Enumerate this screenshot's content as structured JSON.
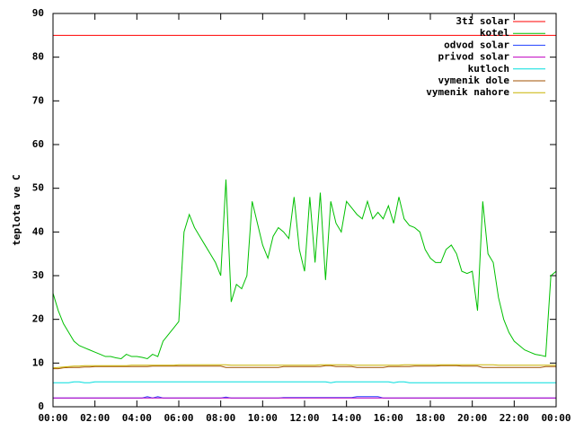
{
  "chart_data": {
    "type": "line",
    "ylabel": "teplota ve C",
    "x": [
      0,
      0.25,
      0.5,
      0.75,
      1,
      1.25,
      1.5,
      1.75,
      2,
      2.25,
      2.5,
      2.75,
      3,
      3.25,
      3.5,
      3.75,
      4,
      4.25,
      4.5,
      4.75,
      5,
      5.25,
      5.5,
      5.75,
      6,
      6.25,
      6.5,
      6.75,
      7,
      7.25,
      7.5,
      7.75,
      8,
      8.25,
      8.5,
      8.75,
      9,
      9.25,
      9.5,
      9.75,
      10,
      10.25,
      10.5,
      10.75,
      11,
      11.25,
      11.5,
      11.75,
      12,
      12.25,
      12.5,
      12.75,
      13,
      13.25,
      13.5,
      13.75,
      14,
      14.25,
      14.5,
      14.75,
      15,
      15.25,
      15.5,
      15.75,
      16,
      16.25,
      16.5,
      16.75,
      17,
      17.25,
      17.5,
      17.75,
      18,
      18.25,
      18.5,
      18.75,
      19,
      19.25,
      19.5,
      19.75,
      20,
      20.25,
      20.5,
      20.75,
      21,
      21.25,
      21.5,
      21.75,
      22,
      22.25,
      22.5,
      22.75,
      23,
      23.25,
      23.5,
      23.75,
      24
    ],
    "xlim": [
      0,
      24
    ],
    "xticks": [
      {
        "value": 0,
        "label": "00:00"
      },
      {
        "value": 2,
        "label": "02:00"
      },
      {
        "value": 4,
        "label": "04:00"
      },
      {
        "value": 6,
        "label": "06:00"
      },
      {
        "value": 8,
        "label": "08:00"
      },
      {
        "value": 10,
        "label": "10:00"
      },
      {
        "value": 12,
        "label": "12:00"
      },
      {
        "value": 14,
        "label": "14:00"
      },
      {
        "value": 16,
        "label": "16:00"
      },
      {
        "value": 18,
        "label": "18:00"
      },
      {
        "value": 20,
        "label": "20:00"
      },
      {
        "value": 22,
        "label": "22:00"
      },
      {
        "value": 24,
        "label": "00:00"
      }
    ],
    "ylim": [
      0,
      90
    ],
    "yticks": [
      0,
      10,
      20,
      30,
      40,
      50,
      60,
      70,
      80,
      90
    ],
    "grid": false,
    "legend": "top-right",
    "series": [
      {
        "name": "3ti solar",
        "color": "#ff0000",
        "values": [
          85,
          85,
          85,
          85,
          85,
          85,
          85,
          85,
          85,
          85,
          85,
          85,
          85,
          85,
          85,
          85,
          85,
          85,
          85,
          85,
          85,
          85,
          85,
          85,
          85,
          85,
          85,
          85,
          85,
          85,
          85,
          85,
          85,
          85,
          85,
          85,
          85,
          85,
          85,
          85,
          85,
          85,
          85,
          85,
          85,
          85,
          85,
          85,
          85,
          85,
          85,
          85,
          85,
          85,
          85,
          85,
          85,
          85,
          85,
          85,
          85,
          85,
          85,
          85,
          85,
          85,
          85,
          85,
          85,
          85,
          85,
          85,
          85,
          85,
          85,
          85,
          85,
          85,
          85,
          85,
          85,
          85,
          85,
          85,
          85,
          85,
          85,
          85,
          85,
          85,
          85,
          85,
          85,
          85,
          85,
          85,
          85
        ]
      },
      {
        "name": "kotel",
        "color": "#00c000",
        "values": [
          26,
          22,
          19,
          17,
          15,
          14,
          13.5,
          13,
          12.5,
          12,
          11.5,
          11.5,
          11.2,
          11,
          12,
          11.5,
          11.5,
          11.3,
          11,
          12,
          11.5,
          15,
          16.5,
          18,
          19.5,
          40,
          44,
          41,
          39,
          37,
          35,
          33,
          30,
          52,
          24,
          28,
          27,
          30,
          47,
          42,
          37,
          34,
          39,
          41,
          40,
          38.5,
          48,
          36,
          31,
          48,
          33,
          49,
          29,
          47,
          42,
          40,
          47,
          45.5,
          44,
          43,
          47,
          43,
          44.5,
          43,
          46,
          42,
          48,
          43,
          41.5,
          41,
          40,
          36,
          34,
          33,
          33,
          36,
          37,
          35,
          31,
          30.5,
          31,
          22,
          47,
          35,
          33,
          25,
          20,
          17,
          15,
          14,
          13,
          12.5,
          12,
          11.8,
          11.5,
          30,
          31
        ]
      },
      {
        "name": "odvod solar",
        "color": "#2040ff",
        "values": [
          2,
          2,
          2,
          2,
          2,
          2,
          2,
          2,
          2,
          2,
          2,
          2,
          2,
          2,
          2,
          2,
          2,
          2,
          2.3,
          2,
          2.3,
          2,
          2,
          2,
          2,
          2,
          2,
          2,
          2,
          2,
          2,
          2,
          2,
          2.2,
          2,
          2,
          2,
          2,
          2,
          2,
          2,
          2,
          2,
          2,
          2.1,
          2.1,
          2.1,
          2.1,
          2.1,
          2.1,
          2.1,
          2.1,
          2.1,
          2.1,
          2.1,
          2.1,
          2.1,
          2.1,
          2.3,
          2.3,
          2.3,
          2.3,
          2.3,
          2,
          2,
          2,
          2,
          2,
          2,
          2,
          2,
          2,
          2,
          2,
          2,
          2,
          2,
          2,
          2,
          2,
          2,
          2,
          2,
          2,
          2,
          2,
          2,
          2,
          2,
          2,
          2,
          2,
          2,
          2,
          2,
          2,
          2
        ]
      },
      {
        "name": "privod solar",
        "color": "#c000c0",
        "values": [
          2,
          2,
          2,
          2,
          2,
          2,
          2,
          2,
          2,
          2,
          2,
          2,
          2,
          2,
          2,
          2,
          2,
          2,
          2,
          2,
          2,
          2,
          2,
          2,
          2,
          2,
          2,
          2,
          2,
          2,
          2,
          2,
          2,
          2,
          2,
          2,
          2,
          2,
          2,
          2,
          2,
          2,
          2,
          2,
          2,
          2,
          2,
          2,
          2,
          2,
          2,
          2,
          2,
          2,
          2,
          2,
          2,
          2,
          2,
          2,
          2,
          2,
          2,
          2,
          2,
          2,
          2,
          2,
          2,
          2,
          2,
          2,
          2,
          2,
          2,
          2,
          2,
          2,
          2,
          2,
          2,
          2,
          2,
          2,
          2,
          2,
          2,
          2,
          2,
          2,
          2,
          2,
          2,
          2,
          2,
          2,
          2
        ]
      },
      {
        "name": "kutloch",
        "color": "#00dddd",
        "values": [
          5.5,
          5.5,
          5.5,
          5.5,
          5.7,
          5.7,
          5.5,
          5.5,
          5.7,
          5.7,
          5.7,
          5.7,
          5.7,
          5.7,
          5.7,
          5.7,
          5.7,
          5.7,
          5.7,
          5.7,
          5.7,
          5.7,
          5.7,
          5.7,
          5.7,
          5.7,
          5.7,
          5.7,
          5.7,
          5.7,
          5.7,
          5.7,
          5.7,
          5.7,
          5.7,
          5.7,
          5.7,
          5.7,
          5.7,
          5.7,
          5.7,
          5.7,
          5.7,
          5.7,
          5.7,
          5.7,
          5.7,
          5.7,
          5.7,
          5.7,
          5.7,
          5.7,
          5.7,
          5.5,
          5.7,
          5.7,
          5.7,
          5.7,
          5.7,
          5.7,
          5.7,
          5.7,
          5.7,
          5.7,
          5.7,
          5.5,
          5.7,
          5.7,
          5.5,
          5.5,
          5.5,
          5.5,
          5.5,
          5.5,
          5.5,
          5.5,
          5.5,
          5.5,
          5.5,
          5.5,
          5.5,
          5.5,
          5.5,
          5.5,
          5.5,
          5.5,
          5.5,
          5.5,
          5.5,
          5.5,
          5.5,
          5.5,
          5.5,
          5.5,
          5.5,
          5.5,
          5.5
        ]
      },
      {
        "name": "vymenik dole",
        "color": "#a05000",
        "values": [
          8.7,
          8.7,
          8.9,
          9,
          9,
          9,
          9.1,
          9.1,
          9.2,
          9.2,
          9.2,
          9.2,
          9.2,
          9.2,
          9.2,
          9.2,
          9.2,
          9.2,
          9.2,
          9.3,
          9.3,
          9.3,
          9.3,
          9.3,
          9.3,
          9.3,
          9.3,
          9.3,
          9.3,
          9.3,
          9.3,
          9.3,
          9.3,
          9,
          9,
          9,
          9,
          9,
          9,
          9,
          9,
          9,
          9,
          9,
          9.2,
          9.2,
          9.2,
          9.2,
          9.2,
          9.2,
          9.2,
          9.2,
          9.4,
          9.4,
          9.2,
          9.2,
          9.2,
          9.2,
          9,
          9,
          9,
          9,
          9,
          9,
          9.2,
          9.2,
          9.2,
          9.2,
          9.2,
          9.3,
          9.3,
          9.3,
          9.3,
          9.3,
          9.4,
          9.4,
          9.4,
          9.4,
          9.3,
          9.3,
          9.3,
          9.3,
          9,
          9,
          9,
          9,
          9,
          9,
          9,
          9,
          9,
          9,
          9,
          9,
          9.2,
          9.2,
          9.2
        ]
      },
      {
        "name": "vymenik nahore",
        "color": "#c8b400",
        "values": [
          8.9,
          9,
          9.1,
          9.2,
          9.3,
          9.3,
          9.4,
          9.4,
          9.4,
          9.4,
          9.4,
          9.4,
          9.4,
          9.4,
          9.4,
          9.5,
          9.5,
          9.5,
          9.5,
          9.5,
          9.5,
          9.5,
          9.5,
          9.5,
          9.6,
          9.6,
          9.6,
          9.6,
          9.6,
          9.6,
          9.6,
          9.6,
          9.6,
          9.6,
          9.5,
          9.5,
          9.5,
          9.5,
          9.5,
          9.5,
          9.5,
          9.5,
          9.5,
          9.5,
          9.5,
          9.5,
          9.5,
          9.5,
          9.5,
          9.5,
          9.5,
          9.6,
          9.6,
          9.6,
          9.6,
          9.6,
          9.6,
          9.5,
          9.5,
          9.5,
          9.5,
          9.5,
          9.5,
          9.5,
          9.5,
          9.5,
          9.5,
          9.6,
          9.6,
          9.6,
          9.6,
          9.6,
          9.6,
          9.6,
          9.6,
          9.6,
          9.6,
          9.6,
          9.6,
          9.6,
          9.6,
          9.6,
          9.6,
          9.6,
          9.6,
          9.5,
          9.5,
          9.5,
          9.5,
          9.5,
          9.5,
          9.5,
          9.5,
          9.5,
          9.5,
          9.5,
          9.5
        ]
      }
    ]
  }
}
